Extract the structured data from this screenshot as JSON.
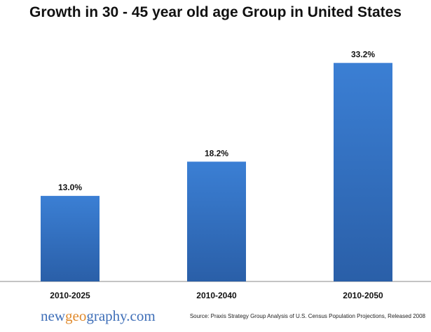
{
  "chart_data": {
    "type": "bar",
    "title": "Growth in 30 - 45 year old age Group in United States",
    "categories": [
      "2010-2025",
      "2010-2040",
      "2010-2050"
    ],
    "values": [
      13.0,
      18.2,
      33.2
    ],
    "value_labels": [
      "13.0%",
      "18.2%",
      "33.2%"
    ],
    "xlabel": "",
    "ylabel": "",
    "ylim": [
      0,
      37
    ],
    "grid": false,
    "legend": "none",
    "bar_color_top": "#3b7fd4",
    "bar_color_bottom": "#2a5fa8"
  },
  "branding": {
    "logo_part1": "new",
    "logo_part2": "geo",
    "logo_part3": "graphy.com"
  },
  "footer": {
    "source": "Source: Praxis Strategy Group Analysis of U.S. Census Population Projections,  Released 2008"
  }
}
